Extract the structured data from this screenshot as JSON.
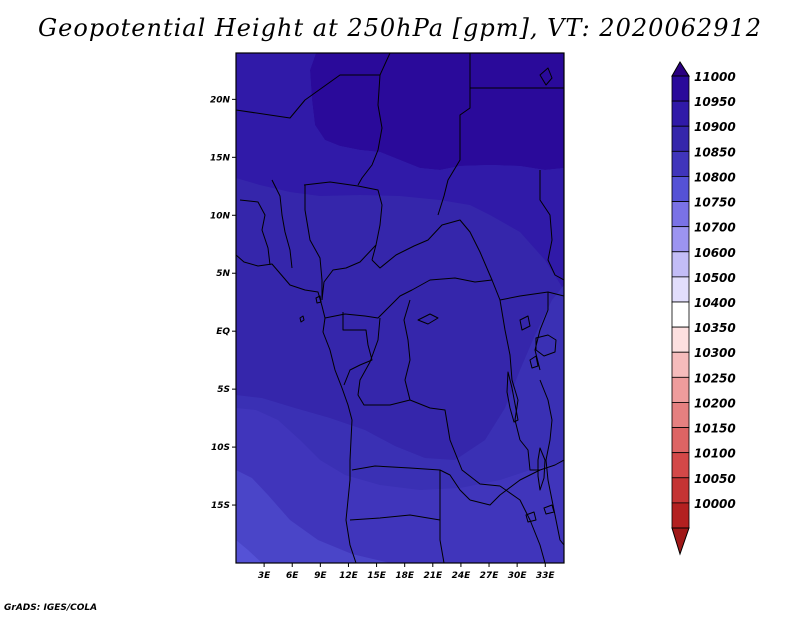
{
  "title": "Geopotential Height at 250hPa [gpm], VT: 2020062912",
  "credit": "GrADS: IGES/COLA",
  "map": {
    "lon_range": [
      0,
      35
    ],
    "lat_range": [
      -20,
      24
    ],
    "lat_ticks": [
      {
        "label": "20N",
        "value": 20
      },
      {
        "label": "15N",
        "value": 15
      },
      {
        "label": "10N",
        "value": 10
      },
      {
        "label": "5N",
        "value": 5
      },
      {
        "label": "EQ",
        "value": 0
      },
      {
        "label": "5S",
        "value": -5
      },
      {
        "label": "10S",
        "value": -10
      },
      {
        "label": "15S",
        "value": -15
      }
    ],
    "lon_ticks": [
      {
        "label": "3E",
        "value": 3
      },
      {
        "label": "6E",
        "value": 6
      },
      {
        "label": "9E",
        "value": 9
      },
      {
        "label": "12E",
        "value": 12
      },
      {
        "label": "15E",
        "value": 15
      },
      {
        "label": "18E",
        "value": 18
      },
      {
        "label": "21E",
        "value": 21
      },
      {
        "label": "24E",
        "value": 24
      },
      {
        "label": "27E",
        "value": 27
      },
      {
        "label": "30E",
        "value": 30
      },
      {
        "label": "33E",
        "value": 33
      }
    ],
    "field_colors": {
      "max": "#2a0a9a",
      "high": "#301aa8",
      "mid": "#3526ab",
      "lower": "#3a30b4",
      "low": "#4035bb",
      "lowest": "#4a45c8",
      "min": "#5552d6"
    },
    "border_color": "#000000"
  },
  "colorbar": {
    "levels": [
      {
        "label": "11000",
        "color": "#2a0a9a"
      },
      {
        "label": "10950",
        "color": "#301aa8"
      },
      {
        "label": "10900",
        "color": "#3526ab"
      },
      {
        "label": "10850",
        "color": "#4035bb"
      },
      {
        "label": "10800",
        "color": "#5552d6"
      },
      {
        "label": "10750",
        "color": "#7a72e6"
      },
      {
        "label": "10700",
        "color": "#9c94f0"
      },
      {
        "label": "10600",
        "color": "#c3bdf7"
      },
      {
        "label": "10500",
        "color": "#e2defc"
      },
      {
        "label": "10400",
        "color": "#ffffff"
      },
      {
        "label": "10350",
        "color": "#fde0e0"
      },
      {
        "label": "10300",
        "color": "#f6bcbc"
      },
      {
        "label": "10250",
        "color": "#ee9c9c"
      },
      {
        "label": "10200",
        "color": "#e58080"
      },
      {
        "label": "10150",
        "color": "#dd6464"
      },
      {
        "label": "10100",
        "color": "#d34848"
      },
      {
        "label": "10050",
        "color": "#c43434"
      },
      {
        "label": "10000",
        "color": "#b32020"
      }
    ],
    "top_arrow_color": "#2a0080",
    "bottom_arrow_color": "#a01818"
  }
}
